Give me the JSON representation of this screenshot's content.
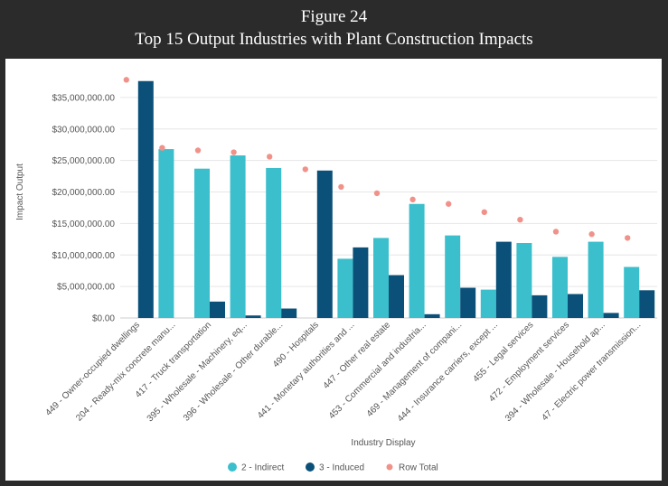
{
  "figure": {
    "label": "Figure 24",
    "title": "Top 15 Output Industries with Plant Construction Impacts"
  },
  "chart_data": {
    "type": "bar",
    "xlabel": "Industry Display",
    "ylabel": "Impact Output",
    "ylim": [
      0,
      40000000
    ],
    "yticks": [
      "$0.00",
      "$5,000,000.00",
      "$10,000,000.00",
      "$15,000,000.00",
      "$20,000,000.00",
      "$25,000,000.00",
      "$30,000,000.00",
      "$35,000,000.00"
    ],
    "ytick_values": [
      0,
      5000000,
      10000000,
      15000000,
      20000000,
      25000000,
      30000000,
      35000000
    ],
    "grid": true,
    "legend_position": "bottom",
    "categories": [
      "449 - Owner-occupied dwellings",
      "204 - Ready-mix concrete manu...",
      "417 - Truck transportation",
      "395 - Wholesale - Machinery, eq...",
      "396 - Wholesale - Other durable...",
      "490 - Hospitals",
      "441 - Monetary authorities and ...",
      "447 - Other real estate",
      "453 - Commercial and industria...",
      "469 - Management of compani...",
      "444 - Insurance carriers, except ...",
      "455 - Legal services",
      "472 - Employment services",
      "394 - Wholesale - Household ap...",
      "47 - Electric power transmission..."
    ],
    "series": [
      {
        "name": "2 - Indirect",
        "kind": "bar",
        "color": "#3bbfcc",
        "values": [
          0,
          26800000,
          23700000,
          25800000,
          23800000,
          0,
          9400000,
          12700000,
          18100000,
          13100000,
          4500000,
          11900000,
          9700000,
          12100000,
          8100000
        ]
      },
      {
        "name": "3 - Induced",
        "kind": "bar",
        "color": "#0b5079",
        "values": [
          37600000,
          0,
          2600000,
          400000,
          1500000,
          23400000,
          11200000,
          6800000,
          600000,
          4800000,
          12100000,
          3600000,
          3800000,
          800000,
          4400000
        ]
      },
      {
        "name": "Row Total",
        "kind": "point",
        "color": "#f0928a",
        "values": [
          37800000,
          27000000,
          26600000,
          26300000,
          25600000,
          23600000,
          20800000,
          19800000,
          18800000,
          18100000,
          16800000,
          15600000,
          13700000,
          13300000,
          12700000
        ]
      }
    ]
  }
}
